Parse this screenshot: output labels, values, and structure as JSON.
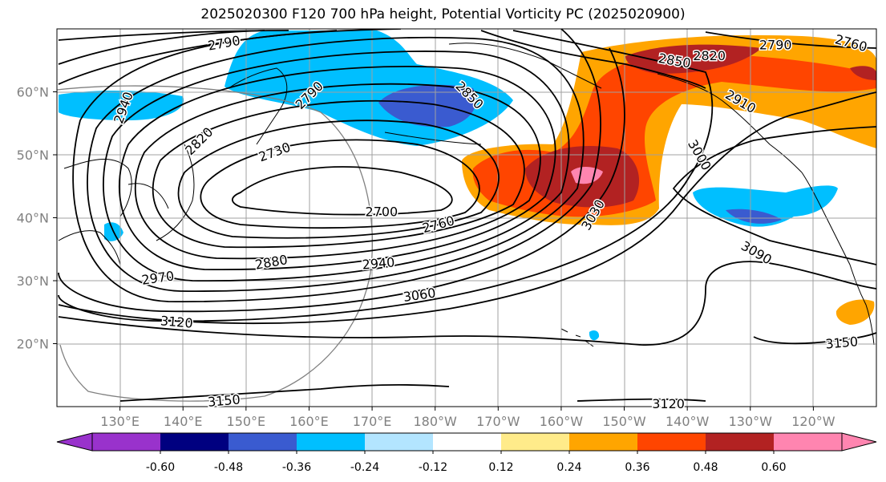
{
  "title": "2025020300 F120 700 hPa height, Potential Vorticity PC (2025020900)",
  "map": {
    "lat_labels": [
      "60°N",
      "50°N",
      "40°N",
      "30°N",
      "20°N"
    ],
    "lat_values": [
      60,
      50,
      40,
      30,
      20
    ],
    "lon_labels": [
      "130°E",
      "140°E",
      "150°E",
      "160°E",
      "170°E",
      "180°W",
      "170°W",
      "160°W",
      "150°W",
      "140°W",
      "130°W",
      "120°W"
    ],
    "lon_values": [
      130,
      140,
      150,
      160,
      170,
      180,
      190,
      200,
      210,
      220,
      230,
      240
    ],
    "extent": {
      "lon_min": 120,
      "lon_max": 250,
      "lat_min": 10,
      "lat_max": 70
    },
    "contour_labels": [
      {
        "text": "2790",
        "lon": 146.5,
        "lat": 67.8,
        "rot": -10
      },
      {
        "text": "2940",
        "lon": 130.5,
        "lat": 57.5,
        "rot": -70
      },
      {
        "text": "2820",
        "lon": 142.5,
        "lat": 52.2,
        "rot": -45
      },
      {
        "text": "2730",
        "lon": 154.5,
        "lat": 50.5,
        "rot": -20
      },
      {
        "text": "2790",
        "lon": 160.0,
        "lat": 59.5,
        "rot": -45
      },
      {
        "text": "2850",
        "lon": 185.5,
        "lat": 59.5,
        "rot": 45
      },
      {
        "text": "2850",
        "lon": 218.0,
        "lat": 65.0,
        "rot": 10
      },
      {
        "text": "2820",
        "lon": 223.5,
        "lat": 65.8,
        "rot": 0
      },
      {
        "text": "2790",
        "lon": 234.0,
        "lat": 67.5,
        "rot": 0
      },
      {
        "text": "2760",
        "lon": 246.0,
        "lat": 67.8,
        "rot": 15
      },
      {
        "text": "2910",
        "lon": 228.5,
        "lat": 58.5,
        "rot": 30
      },
      {
        "text": "3000",
        "lon": 222.0,
        "lat": 50.0,
        "rot": 60
      },
      {
        "text": "3030",
        "lon": 205.0,
        "lat": 40.5,
        "rot": -60
      },
      {
        "text": "3090",
        "lon": 231.0,
        "lat": 34.5,
        "rot": 30
      },
      {
        "text": "2700",
        "lon": 171.5,
        "lat": 41.0,
        "rot": 0
      },
      {
        "text": "2760",
        "lon": 180.5,
        "lat": 39.0,
        "rot": -15
      },
      {
        "text": "2880",
        "lon": 154.0,
        "lat": 33.0,
        "rot": -10
      },
      {
        "text": "2940",
        "lon": 171.0,
        "lat": 32.8,
        "rot": -5
      },
      {
        "text": "2970",
        "lon": 136.0,
        "lat": 30.5,
        "rot": -8
      },
      {
        "text": "3060",
        "lon": 177.5,
        "lat": 27.8,
        "rot": -8
      },
      {
        "text": "3120",
        "lon": 139.0,
        "lat": 23.5,
        "rot": 5
      },
      {
        "text": "3150",
        "lon": 146.5,
        "lat": 11.0,
        "rot": -5
      },
      {
        "text": "3150",
        "lon": 244.5,
        "lat": 20.2,
        "rot": -5
      },
      {
        "text": "3120",
        "lon": 217.0,
        "lat": 10.5,
        "rot": 0
      }
    ]
  },
  "colorbar": {
    "labels": [
      "-0.60",
      "-0.48",
      "-0.36",
      "-0.24",
      "-0.12",
      "0.12",
      "0.24",
      "0.36",
      "0.48",
      "0.60"
    ],
    "levels": [
      -0.6,
      -0.48,
      -0.36,
      -0.24,
      -0.12,
      0.12,
      0.24,
      0.36,
      0.48,
      0.6
    ],
    "colors": {
      "under": "#9932cc",
      "bins": [
        "#9932cc",
        "#000080",
        "#3a5bd0",
        "#00bfff",
        "#b3e5ff",
        "#ffffff",
        "#ffeb8a",
        "#ffa500",
        "#ff4500",
        "#b22222",
        "#ff85b0"
      ],
      "over": "#ff85b0"
    }
  }
}
